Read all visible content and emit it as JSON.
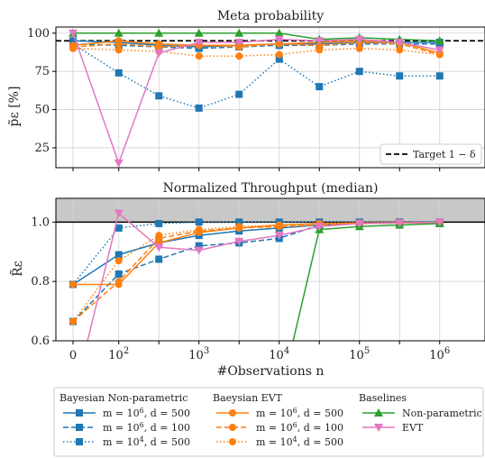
{
  "chart_data": [
    {
      "type": "line",
      "title": "Meta probability",
      "ylabel": "p̃ε [%]",
      "ylim": [
        12,
        104
      ],
      "yticks": [
        25,
        50,
        75,
        100
      ],
      "x_exponents": [
        0,
        2,
        2.5,
        3,
        3.5,
        4,
        4.5,
        5,
        5.5,
        6
      ],
      "grid": true,
      "reference_line": {
        "y": 95,
        "label": "Target 1 − δ"
      },
      "legend_placement": "bottom-right",
      "series": [
        {
          "key": "bnp1",
          "values": [
            95,
            94,
            92,
            91,
            92,
            93,
            93,
            94,
            94,
            94
          ]
        },
        {
          "key": "bnp2",
          "values": [
            93,
            92,
            91,
            90,
            91,
            92,
            92,
            93,
            93,
            93
          ]
        },
        {
          "key": "bnp3",
          "values": [
            93,
            74,
            59,
            51,
            60,
            83,
            65,
            75,
            72,
            72
          ]
        },
        {
          "key": "bevt1",
          "values": [
            92,
            95,
            93,
            92,
            92,
            93,
            94,
            95,
            94,
            87
          ]
        },
        {
          "key": "bevt2",
          "values": [
            91,
            93,
            91,
            92,
            91,
            93,
            92,
            94,
            93,
            86
          ]
        },
        {
          "key": "bevt3",
          "values": [
            90,
            89,
            88,
            85,
            85,
            86,
            89,
            90,
            89,
            86
          ]
        },
        {
          "key": "np",
          "values": [
            100,
            100,
            100,
            100,
            100,
            100,
            96,
            97,
            96,
            95
          ]
        },
        {
          "key": "evt",
          "values": [
            100,
            15,
            87,
            94,
            94,
            96,
            95,
            96,
            94,
            89
          ]
        }
      ]
    },
    {
      "type": "line",
      "title": "Normalized Throughput (median)",
      "ylabel": "R̃ε",
      "xlabel": "#Observations n",
      "ylim": [
        0.6,
        1.08
      ],
      "yticks": [
        0.6,
        0.8,
        1.0
      ],
      "shaded_region": [
        1.0,
        1.08
      ],
      "x_tick_labels": [
        "0",
        "10",
        "10",
        "10",
        "10",
        "10"
      ],
      "x_tick_exponents": [
        "",
        "2",
        "3",
        "4",
        "5",
        "6"
      ],
      "grid": true,
      "series": [
        {
          "key": "bnp1",
          "values": [
            0.79,
            0.89,
            0.93,
            0.955,
            0.97,
            0.98,
            0.99,
            0.995,
            0.997,
            0.998
          ]
        },
        {
          "key": "bnp2",
          "values": [
            0.665,
            0.825,
            0.875,
            0.92,
            0.93,
            0.945,
            0.99,
            0.995,
            0.997,
            0.998
          ]
        },
        {
          "key": "bnp3",
          "values": [
            0.79,
            0.98,
            0.995,
            1.0,
            1.0,
            1.0,
            1.0,
            1.0,
            1.0,
            1.0
          ]
        },
        {
          "key": "bevt1",
          "values": [
            0.79,
            0.79,
            0.93,
            0.965,
            0.98,
            0.99,
            0.995,
            0.997,
            0.998,
            0.998
          ]
        },
        {
          "key": "bevt2",
          "values": [
            0.665,
            0.8,
            0.945,
            0.97,
            0.98,
            0.985,
            0.99,
            0.995,
            0.997,
            0.998
          ]
        },
        {
          "key": "bevt3",
          "values": [
            0.665,
            0.87,
            0.955,
            0.975,
            0.985,
            0.99,
            0.995,
            0.997,
            0.998,
            0.999
          ]
        },
        {
          "key": "np",
          "values": [
            null,
            null,
            null,
            null,
            null,
            0.4,
            0.975,
            0.985,
            0.99,
            0.995
          ]
        },
        {
          "key": "evt",
          "values": [
            0.4,
            1.03,
            0.915,
            0.905,
            0.935,
            0.955,
            0.985,
            0.995,
            0.997,
            0.999
          ]
        }
      ]
    }
  ],
  "legend": {
    "groups": [
      {
        "title": "Bayesian Non-parametric",
        "entries": [
          {
            "key": "bnp1",
            "label": "m = 10^6, d = 500"
          },
          {
            "key": "bnp2",
            "label": "m = 10^6, d = 100"
          },
          {
            "key": "bnp3",
            "label": "m = 10^4, d = 500"
          }
        ]
      },
      {
        "title": "Baeysian EVT",
        "entries": [
          {
            "key": "bevt1",
            "label": "m = 10^6, d = 500"
          },
          {
            "key": "bevt2",
            "label": "m = 10^6, d = 100"
          },
          {
            "key": "bevt3",
            "label": "m = 10^4, d = 500"
          }
        ]
      },
      {
        "title": "Baselines",
        "entries": [
          {
            "key": "np",
            "label": "Non-parametric"
          },
          {
            "key": "evt",
            "label": "EVT"
          }
        ]
      }
    ]
  },
  "styles": {
    "bnp1": {
      "color": "#1f77b4",
      "dash": "solid",
      "marker": "square"
    },
    "bnp2": {
      "color": "#1f77b4",
      "dash": "dashed",
      "marker": "square"
    },
    "bnp3": {
      "color": "#1f77b4",
      "dash": "dotted",
      "marker": "square"
    },
    "bevt1": {
      "color": "#ff7f0e",
      "dash": "solid",
      "marker": "circle"
    },
    "bevt2": {
      "color": "#ff7f0e",
      "dash": "dashed",
      "marker": "circle"
    },
    "bevt3": {
      "color": "#ff7f0e",
      "dash": "dotted",
      "marker": "circle"
    },
    "np": {
      "color": "#2ca02c",
      "dash": "solid",
      "marker": "triangle-up"
    },
    "evt": {
      "color": "#e377c2",
      "dash": "solid",
      "marker": "triangle-down"
    }
  }
}
